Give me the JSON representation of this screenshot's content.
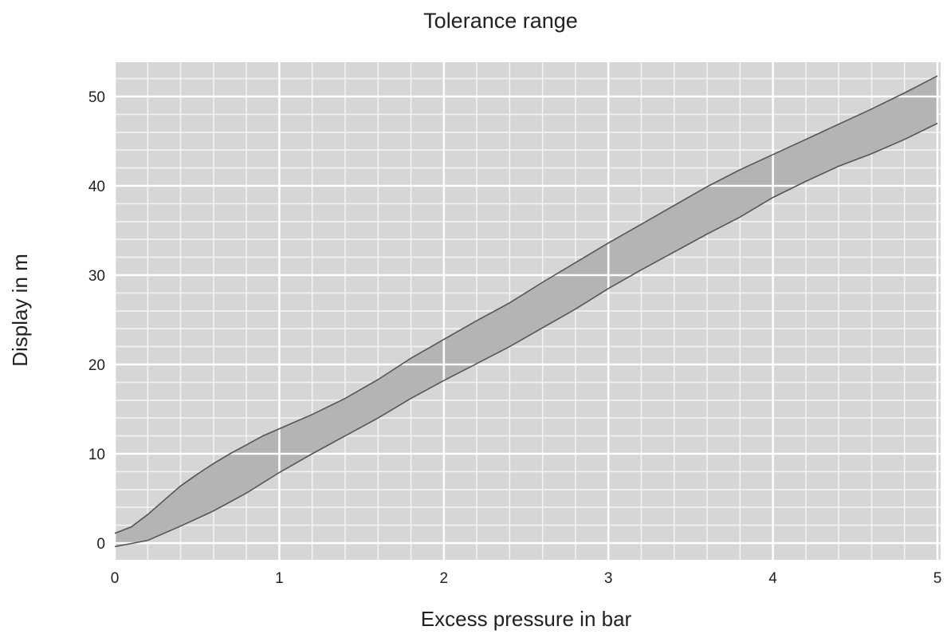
{
  "chart_data": {
    "type": "area",
    "title": "Tolerance range",
    "xlabel": "Excess pressure in bar",
    "ylabel": "Display in m",
    "xlim": [
      0,
      5
    ],
    "ylim": [
      -2,
      55
    ],
    "xticks": [
      0,
      1,
      2,
      3,
      4,
      5
    ],
    "xtick_labels": [
      "0",
      "1",
      "2",
      "3",
      "4",
      "5"
    ],
    "yticks": [
      0,
      10,
      20,
      30,
      40,
      50
    ],
    "ytick_labels": [
      "0",
      "10",
      "20",
      "30",
      "40",
      "50"
    ],
    "grid": true,
    "x_minor_step": 0.2,
    "y_minor_step": 2,
    "series": [
      {
        "x": [
          0,
          0.1,
          0.2,
          0.3,
          0.4,
          0.5,
          0.6,
          0.7,
          0.8,
          0.9,
          1.0,
          1.2,
          1.4,
          1.6,
          1.8,
          2.0,
          2.2,
          2.4,
          2.6,
          2.8,
          3.0,
          3.2,
          3.4,
          3.6,
          3.8,
          4.0,
          4.2,
          4.4,
          4.6,
          4.8,
          5.0
        ],
        "values": [
          1.1,
          1.8,
          3.2,
          4.8,
          6.4,
          7.7,
          8.9,
          10.0,
          11.0,
          12.0,
          12.8,
          14.4,
          16.2,
          18.3,
          20.7,
          22.8,
          24.9,
          26.9,
          29.2,
          31.4,
          33.6,
          35.7,
          37.8,
          39.9,
          41.8,
          43.5,
          45.2,
          46.9,
          48.6,
          50.4,
          52.3
        ]
      },
      {
        "x": [
          0,
          0.2,
          0.4,
          0.6,
          0.8,
          1.0,
          1.2,
          1.4,
          1.6,
          1.8,
          2.0,
          2.2,
          2.4,
          2.6,
          2.8,
          3.0,
          3.2,
          3.4,
          3.6,
          3.8,
          4.0,
          4.2,
          4.4,
          4.6,
          4.8,
          5.0
        ],
        "values": [
          -0.4,
          0.3,
          1.9,
          3.6,
          5.6,
          7.9,
          10.0,
          12.0,
          14.0,
          16.2,
          18.2,
          20.1,
          22.0,
          24.1,
          26.2,
          28.5,
          30.6,
          32.6,
          34.6,
          36.5,
          38.7,
          40.5,
          42.2,
          43.6,
          45.2,
          47.0
        ]
      }
    ],
    "colors": {
      "plot_background": "#d6d6d6",
      "band_fill": "#b4b4b4",
      "grid_major": "#ffffff",
      "grid_minor": "#f2f2f2",
      "curve": "#555555"
    }
  }
}
